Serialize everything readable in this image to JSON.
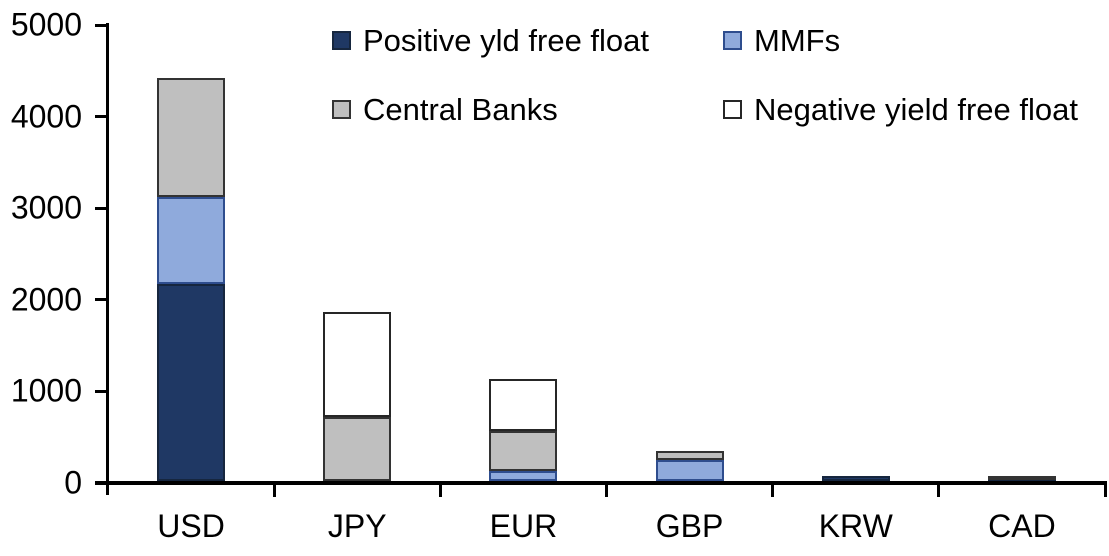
{
  "chart_data": {
    "type": "bar",
    "stacked": true,
    "title": "",
    "xlabel": "",
    "ylabel": "",
    "categories": [
      "USD",
      "JPY",
      "EUR",
      "GBP",
      "KRW",
      "CAD"
    ],
    "series": [
      {
        "id": "positive-yld-free-float",
        "name": "Positive yld free float",
        "color": "#1F3864",
        "border": "#16263e",
        "values": [
          2150,
          0,
          0,
          0,
          50,
          40
        ]
      },
      {
        "id": "mmfs",
        "name": "MMFs",
        "color": "#8FAADC",
        "border": "#2e4d8e",
        "values": [
          950,
          0,
          110,
          230,
          0,
          0
        ]
      },
      {
        "id": "central-banks",
        "name": "Central Banks",
        "color": "#BFBFBF",
        "border": "#333333",
        "values": [
          1300,
          700,
          440,
          100,
          0,
          20
        ]
      },
      {
        "id": "negative-yield-free-float",
        "name": "Negative yield free float",
        "color": "#FFFFFF",
        "border": "#262626",
        "values": [
          0,
          1150,
          560,
          0,
          0,
          0
        ]
      }
    ],
    "ylim": [
      0,
      5000
    ],
    "yticks": [
      0,
      1000,
      2000,
      3000,
      4000,
      5000
    ],
    "grid": false,
    "legend_position": "top",
    "axis_color": "#000000"
  }
}
